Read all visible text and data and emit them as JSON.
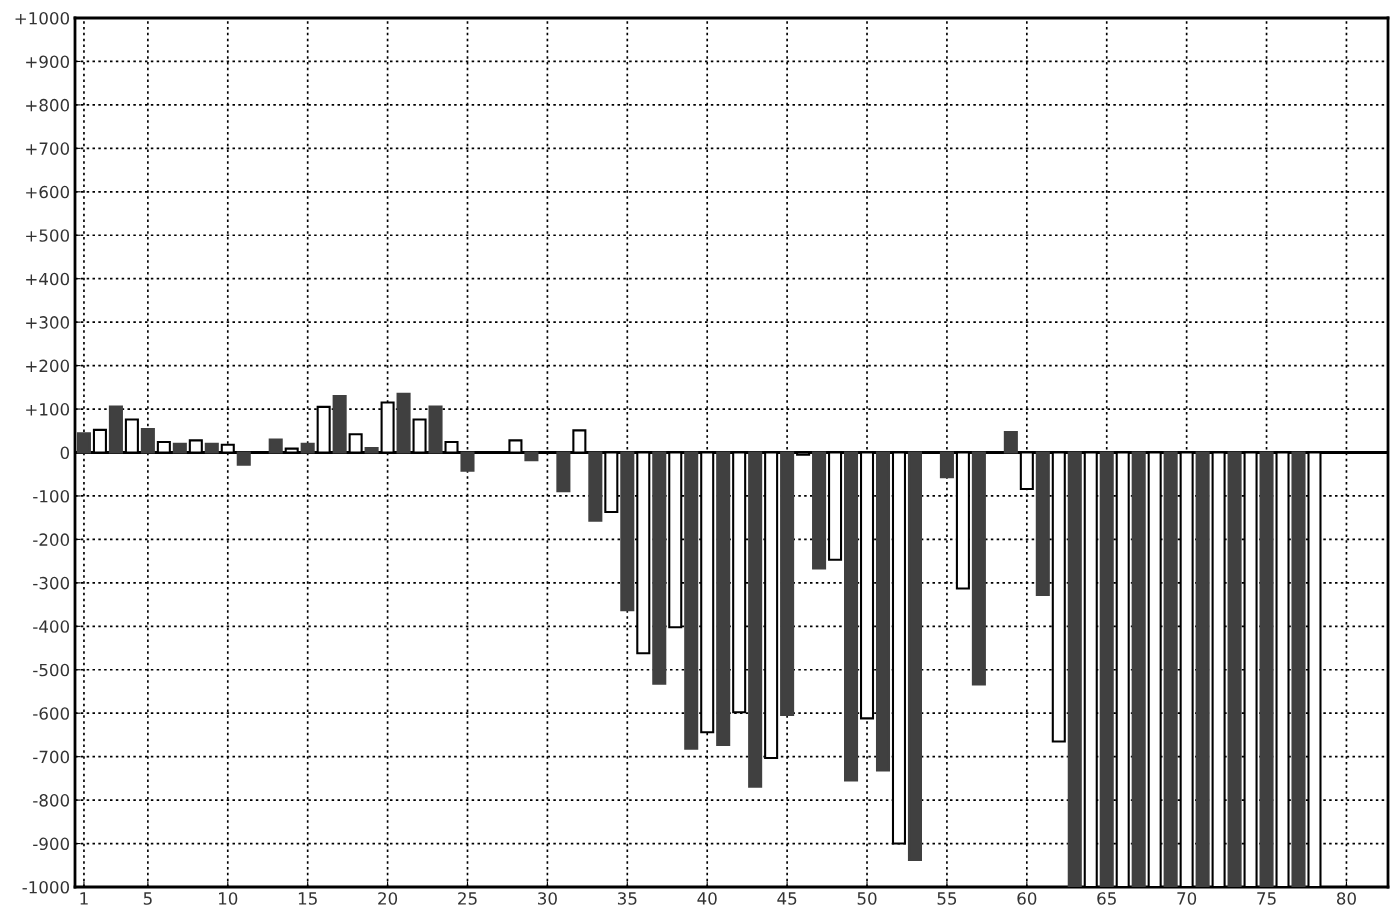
{
  "chart_data": {
    "type": "bar",
    "x": [
      1,
      2,
      3,
      4,
      5,
      6,
      7,
      8,
      9,
      10,
      11,
      12,
      13,
      14,
      15,
      16,
      17,
      18,
      19,
      20,
      21,
      22,
      23,
      24,
      25,
      26,
      27,
      28,
      29,
      30,
      31,
      32,
      33,
      34,
      35,
      36,
      37,
      38,
      39,
      40,
      41,
      42,
      43,
      44,
      45,
      46,
      47,
      48,
      49,
      50,
      51,
      52,
      53,
      54,
      55,
      56,
      57,
      58,
      59,
      60,
      61,
      62,
      63,
      64,
      65,
      66,
      67,
      68,
      69,
      70,
      71,
      72,
      73,
      74,
      75,
      76,
      77,
      78
    ],
    "values": [
      44,
      52,
      106,
      76,
      54,
      24,
      20,
      28,
      20,
      18,
      -28,
      null,
      30,
      9,
      20,
      105,
      130,
      42,
      10,
      115,
      135,
      76,
      106,
      24,
      -42,
      null,
      null,
      28,
      -18,
      null,
      -89,
      51,
      -157,
      -137,
      -363,
      -462,
      -532,
      -402,
      -682,
      -644,
      -673,
      -598,
      -769,
      -703,
      -604,
      -5,
      -267,
      -247,
      -755,
      -612,
      -732,
      -900,
      -938,
      null,
      -57,
      -313,
      -534,
      null,
      47,
      -84,
      -328,
      -665,
      -1000,
      -1000,
      -1000,
      -1000,
      -1000,
      -1000,
      -1000,
      -1000,
      -1000,
      -1000,
      -1000,
      -1000,
      -1000,
      -1000,
      -1000,
      -1000
    ],
    "colors": [
      "#404040",
      "#ffffff",
      "#404040",
      "#ffffff",
      "#404040",
      "#ffffff",
      "#404040",
      "#ffffff",
      "#404040",
      "#ffffff",
      "#404040",
      "#ffffff",
      "#404040",
      "#ffffff",
      "#404040",
      "#ffffff",
      "#404040",
      "#ffffff",
      "#404040",
      "#ffffff",
      "#404040",
      "#ffffff",
      "#404040",
      "#ffffff",
      "#404040",
      "#ffffff",
      "#404040",
      "#ffffff",
      "#404040",
      "#ffffff",
      "#404040",
      "#ffffff",
      "#404040",
      "#ffffff",
      "#404040",
      "#ffffff",
      "#404040",
      "#ffffff",
      "#404040",
      "#ffffff",
      "#404040",
      "#ffffff",
      "#404040",
      "#ffffff",
      "#404040",
      "#ffffff",
      "#404040",
      "#ffffff",
      "#404040",
      "#ffffff",
      "#404040",
      "#ffffff",
      "#404040",
      "#ffffff",
      "#404040",
      "#ffffff",
      "#404040",
      "#ffffff",
      "#404040",
      "#ffffff",
      "#404040",
      "#ffffff",
      "#404040",
      "#ffffff",
      "#404040",
      "#ffffff",
      "#404040",
      "#ffffff",
      "#404040",
      "#ffffff",
      "#404040",
      "#ffffff",
      "#404040",
      "#ffffff",
      "#404040",
      "#ffffff",
      "#404040",
      "#ffffff"
    ],
    "xlim": [
      0.44,
      82.6
    ],
    "xticks": [
      1,
      5,
      10,
      15,
      20,
      25,
      30,
      35,
      40,
      45,
      50,
      55,
      60,
      65,
      70,
      75,
      80
    ],
    "ylim": [
      -1000,
      1000
    ],
    "yticks": [
      {
        "value": 1000,
        "label": "+1000"
      },
      {
        "value": 900,
        "label": "+900"
      },
      {
        "value": 800,
        "label": "+800"
      },
      {
        "value": 700,
        "label": "+700"
      },
      {
        "value": 600,
        "label": "+600"
      },
      {
        "value": 500,
        "label": "+500"
      },
      {
        "value": 400,
        "label": "+400"
      },
      {
        "value": 300,
        "label": "+300"
      },
      {
        "value": 200,
        "label": "+200"
      },
      {
        "value": 100,
        "label": "+100"
      },
      0,
      {
        "value": -100,
        "label": "-100"
      },
      {
        "value": -200,
        "label": "-200"
      },
      {
        "value": -300,
        "label": "-300"
      },
      {
        "value": -400,
        "label": "-400"
      },
      {
        "value": -500,
        "label": "-500"
      },
      {
        "value": -600,
        "label": "-600"
      },
      {
        "value": -700,
        "label": "-700"
      },
      {
        "value": -800,
        "label": "-800"
      },
      {
        "value": -900,
        "label": "-900"
      },
      {
        "value": -1000,
        "label": "-1000"
      }
    ],
    "grid": true
  }
}
